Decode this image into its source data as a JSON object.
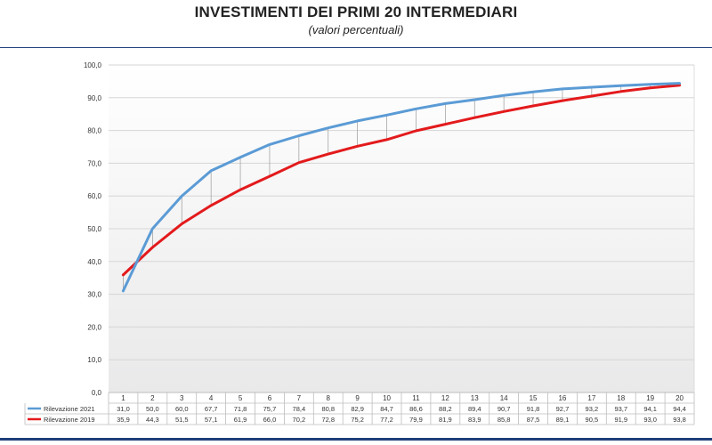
{
  "title": "INVESTIMENTI DEI PRIMI 20 INTERMEDIARI",
  "subtitle": "(valori percentuali)",
  "chart_data": {
    "type": "line",
    "x": [
      "1",
      "2",
      "3",
      "4",
      "5",
      "6",
      "7",
      "8",
      "9",
      "10",
      "11",
      "12",
      "13",
      "14",
      "15",
      "16",
      "17",
      "18",
      "19",
      "20"
    ],
    "ylim": [
      0,
      100
    ],
    "yticks": [
      "0,0",
      "10,0",
      "20,0",
      "30,0",
      "40,0",
      "50,0",
      "60,0",
      "70,0",
      "80,0",
      "90,0",
      "100,0"
    ],
    "grid": true,
    "legend": "bottom-table",
    "series": [
      {
        "name": "Rilevazione 2021",
        "color": "#5b9bd5",
        "values": [
          31.0,
          50.0,
          60.0,
          67.7,
          71.8,
          75.7,
          78.4,
          80.8,
          82.9,
          84.7,
          86.6,
          88.2,
          89.4,
          90.7,
          91.8,
          92.7,
          93.2,
          93.7,
          94.1,
          94.4
        ],
        "labels": [
          "31,0",
          "50,0",
          "60,0",
          "67,7",
          "71,8",
          "75,7",
          "78,4",
          "80,8",
          "82,9",
          "84,7",
          "86,6",
          "88,2",
          "89,4",
          "90,7",
          "91,8",
          "92,7",
          "93,2",
          "93,7",
          "94,1",
          "94,4"
        ]
      },
      {
        "name": "Rilevazione 2019",
        "color": "#e31a1c",
        "values": [
          35.9,
          44.3,
          51.5,
          57.1,
          61.9,
          66.0,
          70.2,
          72.8,
          75.2,
          77.2,
          79.9,
          81.9,
          83.9,
          85.8,
          87.5,
          89.1,
          90.5,
          91.9,
          93.0,
          93.8
        ],
        "labels": [
          "35,9",
          "44,3",
          "51,5",
          "57,1",
          "61,9",
          "66,0",
          "70,2",
          "72,8",
          "75,2",
          "77,2",
          "79,9",
          "81,9",
          "83,9",
          "85,8",
          "87,5",
          "89,1",
          "90,5",
          "91,9",
          "93,0",
          "93,8"
        ]
      }
    ]
  }
}
